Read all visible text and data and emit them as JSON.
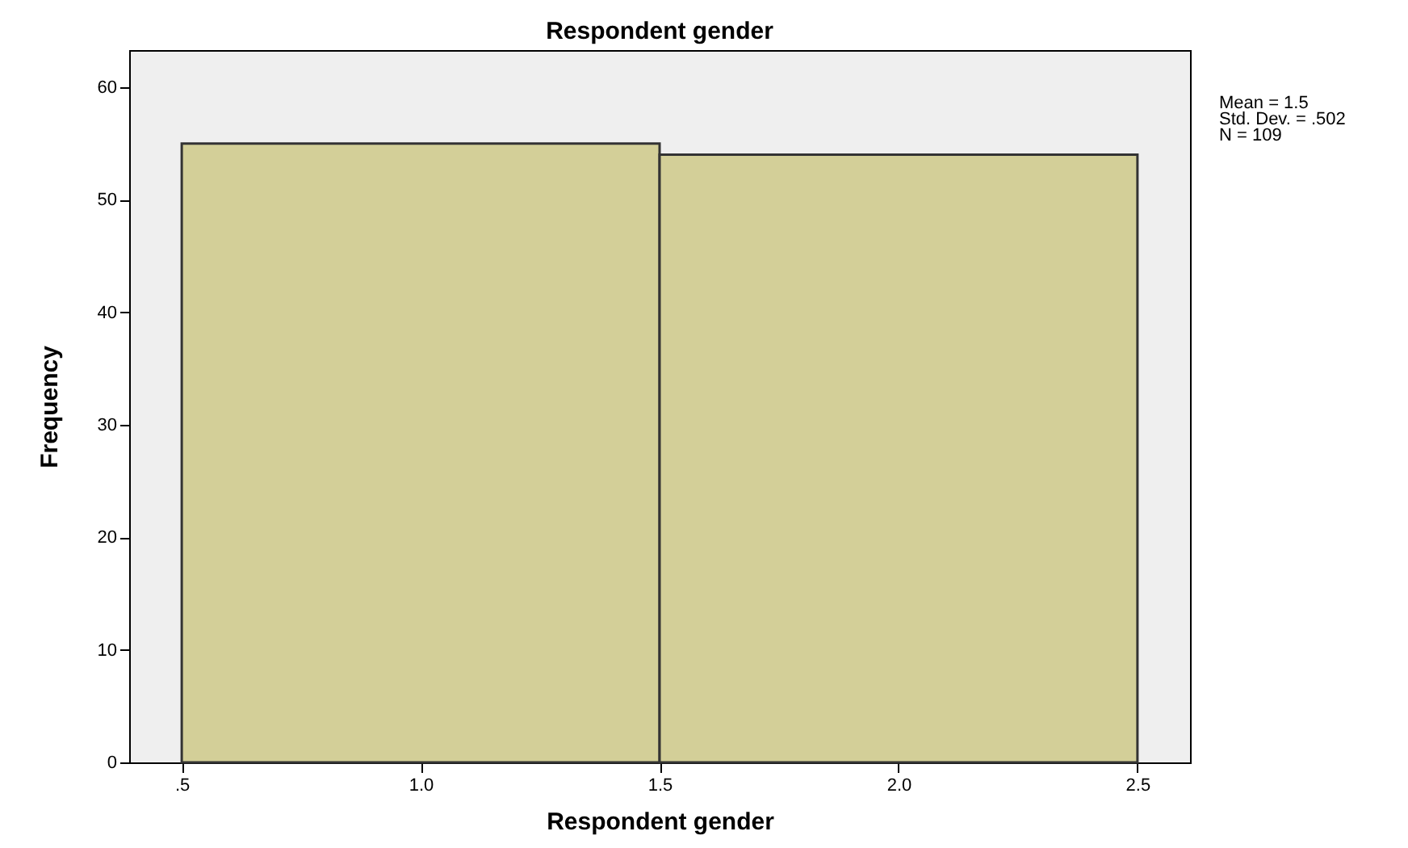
{
  "chart_data": {
    "type": "histogram",
    "title": "Respondent gender",
    "xlabel": "Respondent gender",
    "ylabel": "Frequency",
    "bins": [
      0.5,
      1.5,
      2.5
    ],
    "values": [
      55,
      54
    ],
    "color": "#d3cf98",
    "xlim": [
      0.39,
      2.61
    ],
    "xticks": [
      {
        "value": 0.5,
        "label": ".5"
      },
      {
        "value": 1.0,
        "label": "1.0"
      },
      {
        "value": 1.5,
        "label": "1.5"
      },
      {
        "value": 2.0,
        "label": "2.0"
      },
      {
        "value": 2.5,
        "label": "2.5"
      }
    ],
    "ylim": [
      0,
      63.3
    ],
    "yticks": [
      0,
      10,
      20,
      30,
      40,
      50,
      60
    ],
    "grid": false,
    "annotations": [
      "Mean = 1.5",
      "Std. Dev. = .502",
      "N = 109"
    ]
  }
}
